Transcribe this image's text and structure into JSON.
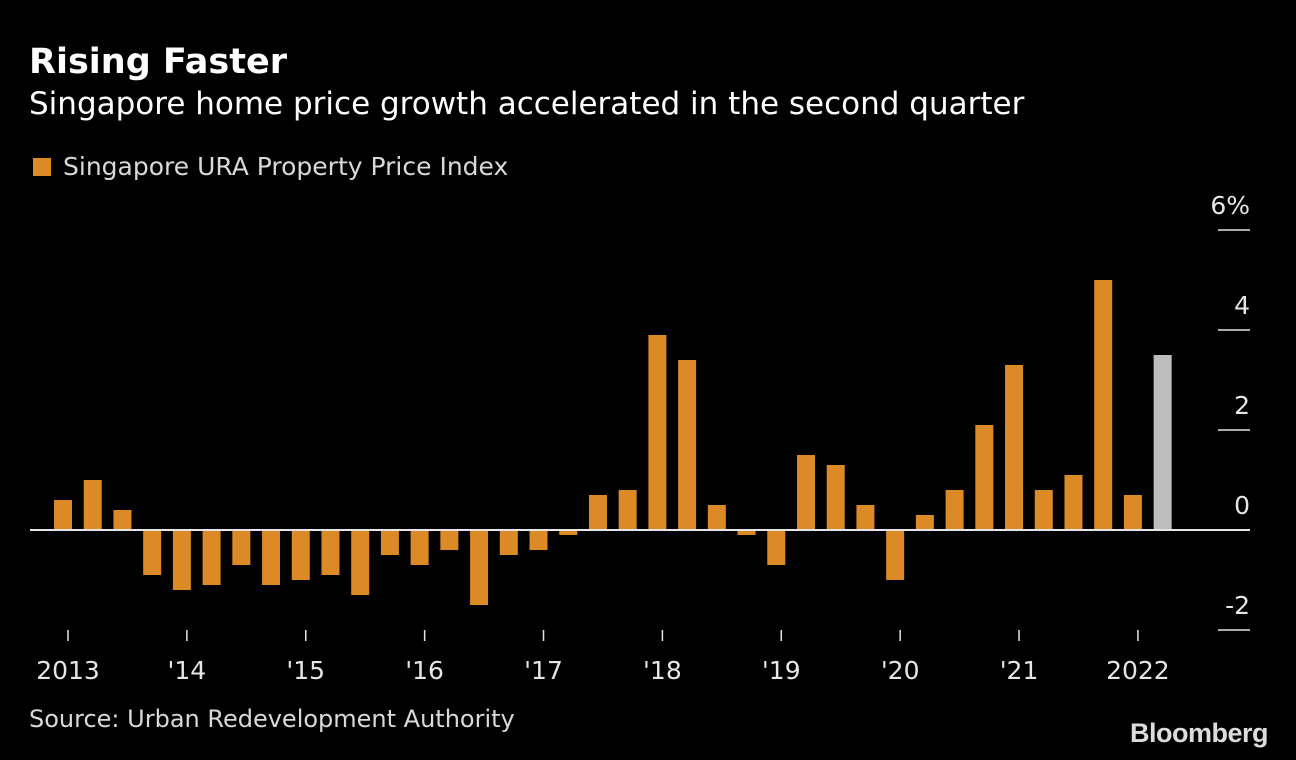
{
  "title": "Rising Faster",
  "subtitle": "Singapore home price growth accelerated in the second quarter",
  "source": "Source: Urban Redevelopment Authority",
  "logo": "Bloomberg",
  "chart_data": {
    "type": "bar",
    "legend": [
      {
        "name": "Singapore URA Property Price Index",
        "color": "#dc8a25"
      }
    ],
    "legend_position": "top-left",
    "x_tick_labels": [
      "2013",
      "'14",
      "'15",
      "'16",
      "'17",
      "'18",
      "'19",
      "'20",
      "'21",
      "2022"
    ],
    "y_tick_labels": [
      "6%",
      "4",
      "2",
      "0",
      "-2"
    ],
    "y_ticks": [
      6,
      4,
      2,
      0,
      -2
    ],
    "ylim": [
      -2,
      6
    ],
    "grid": false,
    "categories": [
      "2013 Q1",
      "2013 Q2",
      "2013 Q3",
      "2013 Q4",
      "2014 Q1",
      "2014 Q2",
      "2014 Q3",
      "2014 Q4",
      "2015 Q1",
      "2015 Q2",
      "2015 Q3",
      "2015 Q4",
      "2016 Q1",
      "2016 Q2",
      "2016 Q3",
      "2016 Q4",
      "2017 Q1",
      "2017 Q2",
      "2017 Q3",
      "2017 Q4",
      "2018 Q1",
      "2018 Q2",
      "2018 Q3",
      "2018 Q4",
      "2019 Q1",
      "2019 Q2",
      "2019 Q3",
      "2019 Q4",
      "2020 Q1",
      "2020 Q2",
      "2020 Q3",
      "2020 Q4",
      "2021 Q1",
      "2021 Q2",
      "2021 Q3",
      "2021 Q4",
      "2022 Q1",
      "2022 Q2"
    ],
    "series": [
      {
        "name": "Singapore URA Property Price Index",
        "values": [
          0.6,
          1.0,
          0.4,
          -0.9,
          -1.2,
          -1.1,
          -0.7,
          -1.1,
          -1.0,
          -0.9,
          -1.3,
          -0.5,
          -0.7,
          -0.4,
          -1.5,
          -0.5,
          -0.4,
          -0.1,
          0.7,
          0.8,
          3.9,
          3.4,
          0.5,
          -0.1,
          -0.7,
          1.5,
          1.3,
          0.5,
          -1.0,
          0.3,
          0.8,
          2.1,
          3.3,
          0.8,
          1.1,
          5.0,
          0.7,
          3.5
        ],
        "color": "#dc8a25",
        "highlight_last_color": "#bdbdbd"
      }
    ]
  }
}
